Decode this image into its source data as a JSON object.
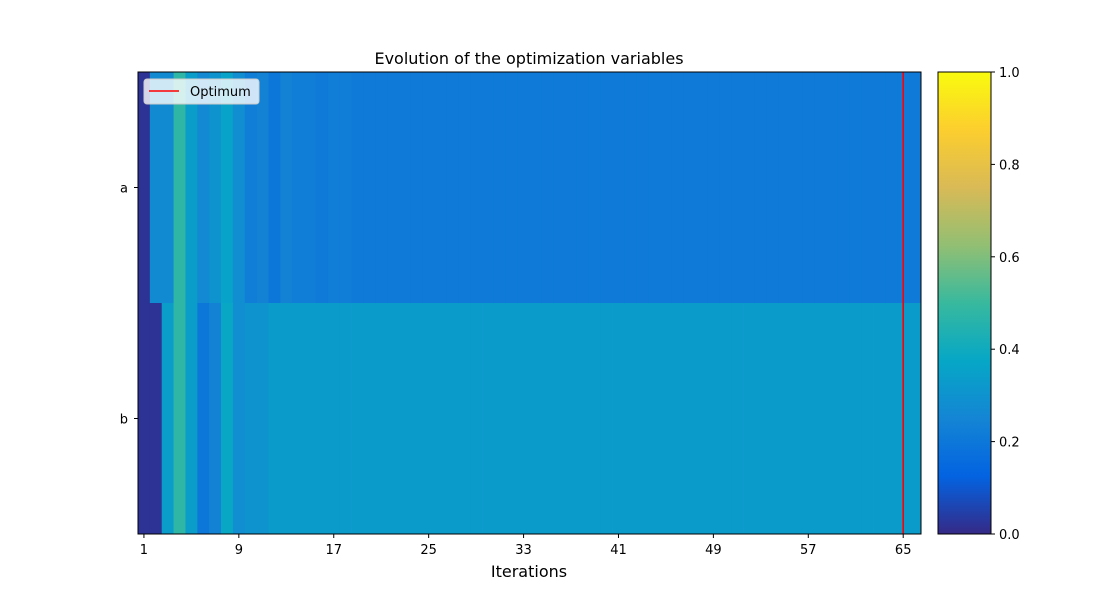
{
  "chart_data": {
    "type": "heatmap",
    "title": "Evolution of the optimization variables",
    "xlabel": "Iterations",
    "ylabel": "",
    "rows": [
      "a",
      "b"
    ],
    "iterations": [
      1,
      2,
      3,
      4,
      5,
      6,
      7,
      8,
      9,
      10,
      11,
      12,
      13,
      14,
      15,
      16,
      17,
      18,
      19,
      20,
      21,
      22,
      23,
      24,
      25,
      26,
      27,
      28,
      29,
      30,
      31,
      32,
      33,
      34,
      35,
      36,
      37,
      38,
      39,
      40,
      41,
      42,
      43,
      44,
      45,
      46,
      47,
      48,
      49,
      50,
      51,
      52,
      53,
      54,
      55,
      56,
      57,
      58,
      59,
      60,
      61,
      62,
      63,
      64,
      65,
      66
    ],
    "values": {
      "a": [
        0.02,
        0.27,
        0.27,
        0.48,
        0.34,
        0.26,
        0.3,
        0.36,
        0.28,
        0.22,
        0.24,
        0.2,
        0.24,
        0.22,
        0.22,
        0.21,
        0.22,
        0.22,
        0.21,
        0.21,
        0.21,
        0.21,
        0.21,
        0.21,
        0.21,
        0.21,
        0.21,
        0.21,
        0.21,
        0.21,
        0.21,
        0.21,
        0.21,
        0.21,
        0.21,
        0.21,
        0.21,
        0.21,
        0.21,
        0.21,
        0.21,
        0.21,
        0.21,
        0.21,
        0.21,
        0.21,
        0.21,
        0.21,
        0.21,
        0.21,
        0.21,
        0.21,
        0.21,
        0.21,
        0.21,
        0.21,
        0.21,
        0.21,
        0.21,
        0.21,
        0.21,
        0.21,
        0.21,
        0.21,
        0.21,
        0.21
      ],
      "b": [
        0.02,
        0.02,
        0.34,
        0.48,
        0.34,
        0.2,
        0.24,
        0.38,
        0.28,
        0.3,
        0.3,
        0.33,
        0.33,
        0.33,
        0.33,
        0.33,
        0.33,
        0.33,
        0.33,
        0.33,
        0.33,
        0.33,
        0.33,
        0.33,
        0.33,
        0.33,
        0.33,
        0.33,
        0.33,
        0.33,
        0.33,
        0.33,
        0.33,
        0.33,
        0.33,
        0.33,
        0.33,
        0.33,
        0.33,
        0.33,
        0.33,
        0.33,
        0.33,
        0.33,
        0.33,
        0.33,
        0.33,
        0.33,
        0.33,
        0.33,
        0.33,
        0.33,
        0.33,
        0.33,
        0.33,
        0.33,
        0.33,
        0.33,
        0.33,
        0.33,
        0.33,
        0.33,
        0.33,
        0.33,
        0.33,
        0.33
      ]
    },
    "x_ticks": [
      1,
      9,
      17,
      25,
      33,
      41,
      49,
      57,
      65
    ],
    "xlim": [
      0.5,
      66.5
    ],
    "colorbar": {
      "range": [
        0,
        1
      ],
      "ticks": [
        "0.0",
        "0.2",
        "0.4",
        "0.6",
        "0.8",
        "1.0"
      ],
      "colormap": "parula",
      "stops": [
        "#352a87",
        "#0363e1",
        "#1485d4",
        "#06a7c6",
        "#38b99e",
        "#92bf73",
        "#d9ba56",
        "#fcce2e",
        "#f9fb0e"
      ]
    },
    "optimum": {
      "label": "Optimum",
      "iteration": 65,
      "color": "#ff0000"
    },
    "legend": {
      "position": "upper-left",
      "entries": [
        "Optimum"
      ]
    },
    "grid": false
  }
}
